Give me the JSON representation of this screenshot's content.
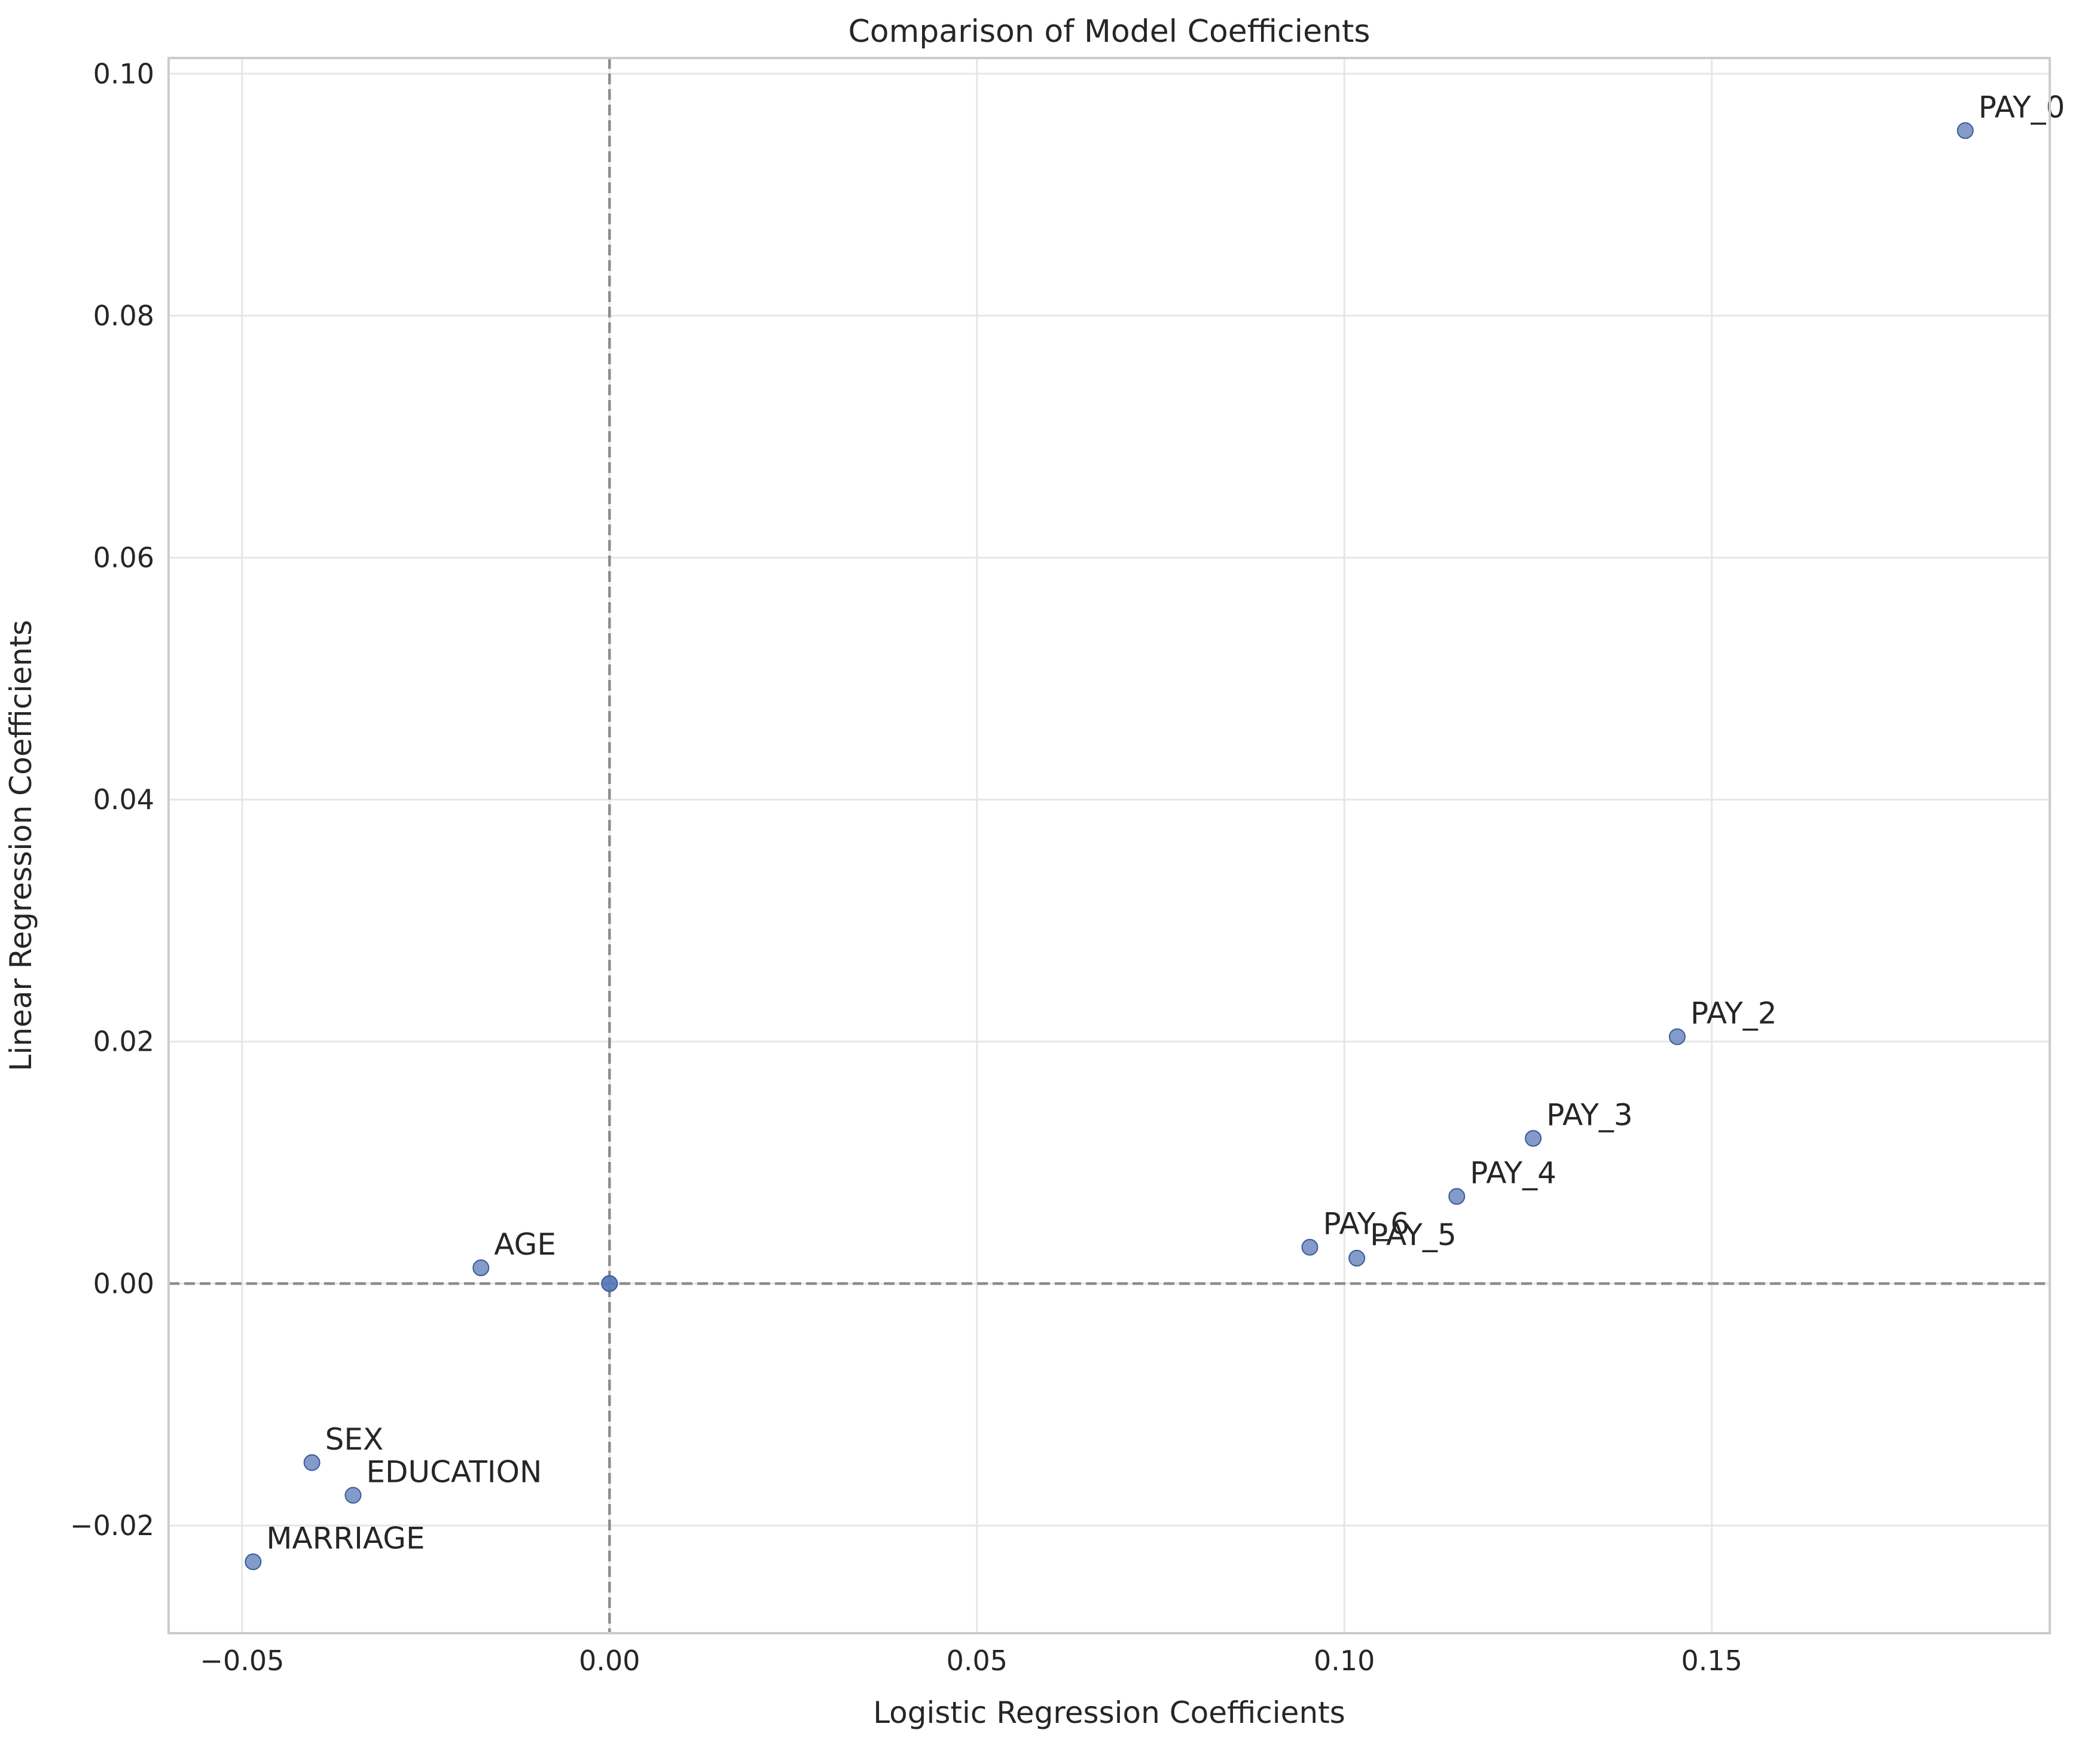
{
  "chart_data": {
    "type": "scatter",
    "title": "Comparison of Model Coefficients",
    "xlabel": "Logistic Regression Coefficients",
    "ylabel": "Linear Regression Coefficients",
    "xlim": [
      -0.06,
      0.196
    ],
    "ylim": [
      -0.0289,
      0.1013
    ],
    "xticks": [
      {
        "value": -0.05,
        "label": "−0.05"
      },
      {
        "value": 0.0,
        "label": "0.00"
      },
      {
        "value": 0.05,
        "label": "0.05"
      },
      {
        "value": 0.1,
        "label": "0.10"
      },
      {
        "value": 0.15,
        "label": "0.15"
      }
    ],
    "yticks": [
      {
        "value": -0.02,
        "label": "−0.02"
      },
      {
        "value": 0.0,
        "label": "0.00"
      },
      {
        "value": 0.02,
        "label": "0.02"
      },
      {
        "value": 0.04,
        "label": "0.04"
      },
      {
        "value": 0.06,
        "label": "0.06"
      },
      {
        "value": 0.08,
        "label": "0.08"
      },
      {
        "value": 0.1,
        "label": "0.10"
      }
    ],
    "grid": true,
    "reference_lines": {
      "x": 0,
      "y": 0,
      "style": "dashed"
    },
    "colors": {
      "point": "#5a7ab8",
      "point_edge": "#3d5a96",
      "reference": "#8c8c8c",
      "grid": "#e6e6e6",
      "frame": "#cccccc"
    },
    "points": [
      {
        "label": "PAY_0",
        "x": 0.1845,
        "y": 0.0953
      },
      {
        "label": "PAY_2",
        "x": 0.1453,
        "y": 0.0204
      },
      {
        "label": "PAY_3",
        "x": 0.1257,
        "y": 0.012
      },
      {
        "label": "PAY_4",
        "x": 0.1153,
        "y": 0.0072
      },
      {
        "label": "PAY_6",
        "x": 0.0953,
        "y": 0.003
      },
      {
        "label": "PAY_5",
        "x": 0.1017,
        "y": 0.0021
      },
      {
        "label": "AGE",
        "x": -0.0175,
        "y": 0.0013
      },
      {
        "label": "",
        "x": 0.0,
        "y": 0.0
      },
      {
        "label": "",
        "x": 0.0,
        "y": 0.0
      },
      {
        "label": "SEX",
        "x": -0.0405,
        "y": -0.0148
      },
      {
        "label": "EDUCATION",
        "x": -0.0349,
        "y": -0.0175
      },
      {
        "label": "MARRIAGE",
        "x": -0.0485,
        "y": -0.023
      }
    ]
  }
}
